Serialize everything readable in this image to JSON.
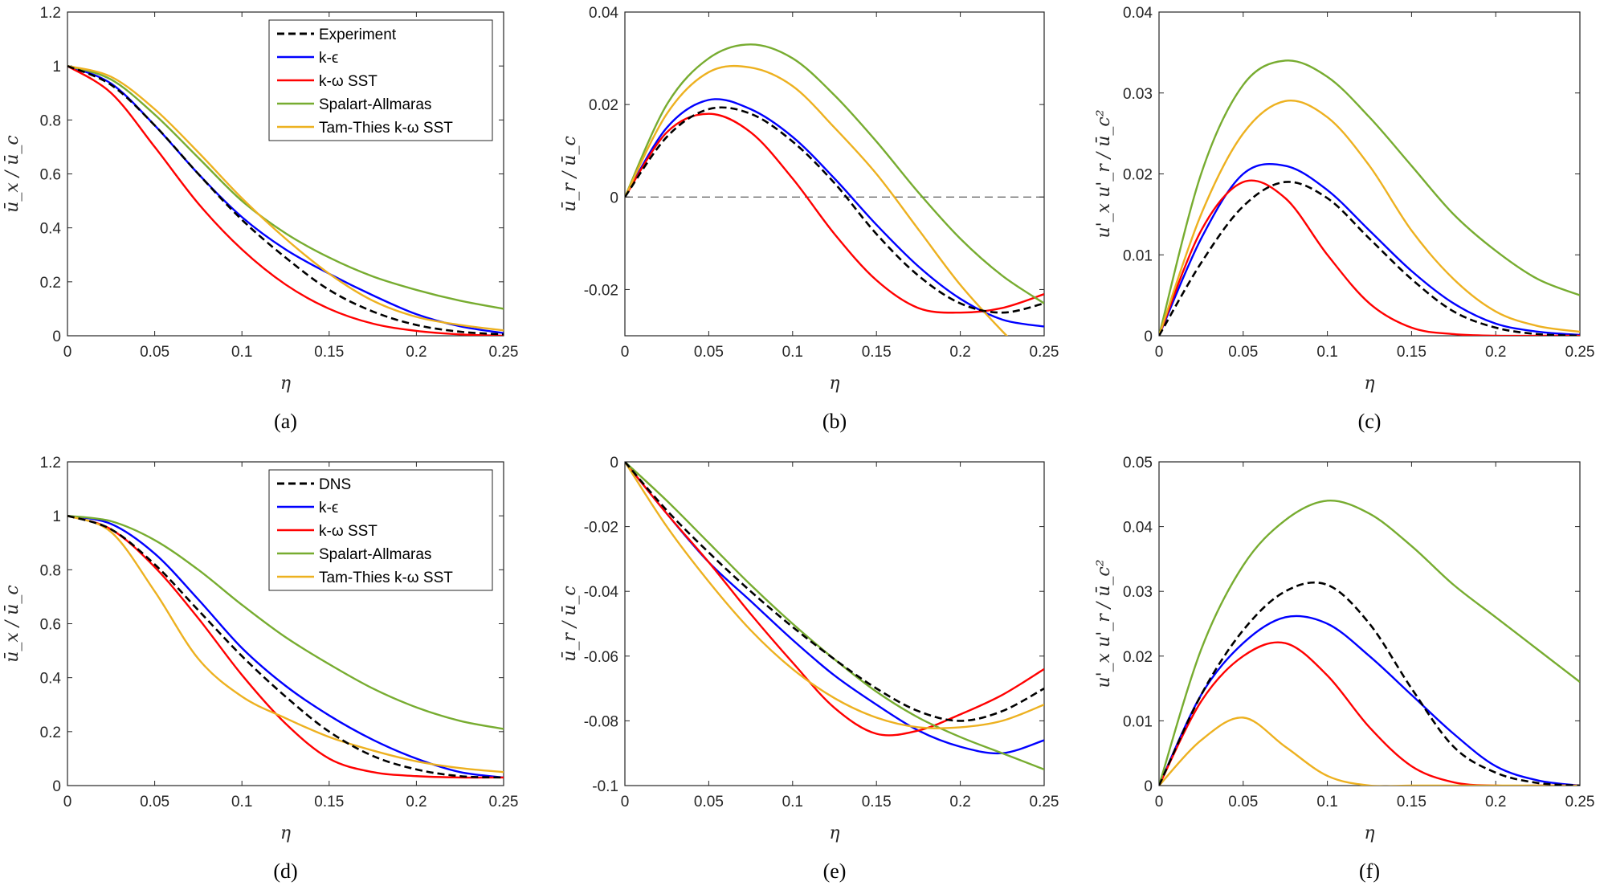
{
  "colors": {
    "reference": "#000000",
    "k-epsilon": "#0000FF",
    "k-omega-sst": "#FF0000",
    "spalart-allmaras": "#77AC30",
    "tam-thies": "#EDB120"
  },
  "chart_data": [
    {
      "type": "line",
      "caption": "(a)",
      "xlabel": "η",
      "ylabel": "ū_x / ū_c",
      "xlim": [
        0,
        0.25
      ],
      "ylim": [
        0,
        1.2
      ],
      "xticks": [
        "0",
        "0.05",
        "0.1",
        "0.15",
        "0.2",
        "0.25"
      ],
      "yticks": [
        "0",
        "0.2",
        "0.4",
        "0.6",
        "0.8",
        "1",
        "1.2"
      ],
      "legend": "top-right",
      "x": [
        0,
        0.025,
        0.05,
        0.075,
        0.1,
        0.125,
        0.15,
        0.175,
        0.2,
        0.225,
        0.25
      ],
      "series": [
        {
          "name": "Experiment",
          "color": "reference",
          "dashed": true,
          "values": [
            1.0,
            0.93,
            0.78,
            0.6,
            0.43,
            0.29,
            0.17,
            0.09,
            0.04,
            0.015,
            0.005
          ]
        },
        {
          "name": "k-ϵ",
          "color": "k-epsilon",
          "dashed": false,
          "values": [
            1.0,
            0.935,
            0.78,
            0.6,
            0.44,
            0.32,
            0.23,
            0.15,
            0.08,
            0.035,
            0.01
          ]
        },
        {
          "name": "k-ω SST",
          "color": "k-omega-sst",
          "dashed": false,
          "values": [
            1.0,
            0.9,
            0.7,
            0.49,
            0.32,
            0.19,
            0.1,
            0.045,
            0.018,
            0.005,
            0.0
          ]
        },
        {
          "name": "Spalart-Allmaras",
          "color": "spalart-allmaras",
          "dashed": false,
          "values": [
            1.0,
            0.95,
            0.82,
            0.66,
            0.5,
            0.38,
            0.29,
            0.22,
            0.17,
            0.13,
            0.1
          ]
        },
        {
          "name": "Tam-Thies k-ω SST",
          "color": "tam-thies",
          "dashed": false,
          "values": [
            1.0,
            0.96,
            0.84,
            0.68,
            0.51,
            0.36,
            0.23,
            0.13,
            0.07,
            0.04,
            0.02
          ]
        }
      ]
    },
    {
      "type": "line",
      "caption": "(b)",
      "xlabel": "η",
      "ylabel": "ū_r / ū_c",
      "xlim": [
        0,
        0.25
      ],
      "ylim": [
        -0.03,
        0.04
      ],
      "xticks": [
        "0",
        "0.05",
        "0.1",
        "0.15",
        "0.2",
        "0.25"
      ],
      "yticks": [
        "-0.02",
        "0",
        "0.02",
        "0.04"
      ],
      "ytick_values": [
        -0.02,
        0,
        0.02,
        0.04
      ],
      "zero_line": true,
      "x": [
        0,
        0.025,
        0.05,
        0.075,
        0.1,
        0.125,
        0.15,
        0.175,
        0.2,
        0.225,
        0.25
      ],
      "series": [
        {
          "name": "Experiment",
          "color": "reference",
          "dashed": true,
          "values": [
            0.0,
            0.013,
            0.019,
            0.018,
            0.012,
            0.003,
            -0.008,
            -0.017,
            -0.023,
            -0.025,
            -0.023
          ]
        },
        {
          "name": "k-ϵ",
          "color": "k-epsilon",
          "dashed": false,
          "values": [
            0.0,
            0.015,
            0.021,
            0.019,
            0.013,
            0.004,
            -0.006,
            -0.015,
            -0.022,
            -0.0265,
            -0.028
          ]
        },
        {
          "name": "k-ω SST",
          "color": "k-omega-sst",
          "dashed": false,
          "values": [
            0.0,
            0.014,
            0.018,
            0.014,
            0.004,
            -0.008,
            -0.018,
            -0.024,
            -0.025,
            -0.024,
            -0.021
          ]
        },
        {
          "name": "Spalart-Allmaras",
          "color": "spalart-allmaras",
          "dashed": false,
          "values": [
            0.0,
            0.02,
            0.03,
            0.033,
            0.03,
            0.022,
            0.012,
            0.001,
            -0.009,
            -0.017,
            -0.023
          ]
        },
        {
          "name": "Tam-Thies k-ω SST",
          "color": "tam-thies",
          "dashed": false,
          "values": [
            0.0,
            0.018,
            0.027,
            0.028,
            0.024,
            0.015,
            0.005,
            -0.007,
            -0.019,
            -0.029,
            -0.038
          ]
        }
      ]
    },
    {
      "type": "line",
      "caption": "(c)",
      "xlabel": "η",
      "ylabel": "u'_x u'_r / ū_c²",
      "xlim": [
        0,
        0.25
      ],
      "ylim": [
        0,
        0.04
      ],
      "xticks": [
        "0",
        "0.05",
        "0.1",
        "0.15",
        "0.2",
        "0.25"
      ],
      "yticks": [
        "0",
        "0.01",
        "0.02",
        "0.03",
        "0.04"
      ],
      "x": [
        0,
        0.025,
        0.05,
        0.075,
        0.1,
        0.125,
        0.15,
        0.175,
        0.2,
        0.225,
        0.25
      ],
      "series": [
        {
          "name": "Experiment",
          "color": "reference",
          "dashed": true,
          "values": [
            0.0,
            0.009,
            0.016,
            0.019,
            0.017,
            0.012,
            0.007,
            0.003,
            0.001,
            0.0002,
            0.0
          ]
        },
        {
          "name": "k-ϵ",
          "color": "k-epsilon",
          "dashed": false,
          "values": [
            0.0,
            0.012,
            0.02,
            0.021,
            0.018,
            0.013,
            0.008,
            0.004,
            0.0015,
            0.0005,
            0.0001
          ]
        },
        {
          "name": "k-ω SST",
          "color": "k-omega-sst",
          "dashed": false,
          "values": [
            0.0,
            0.013,
            0.019,
            0.017,
            0.01,
            0.004,
            0.001,
            0.0002,
            0.0,
            0.0,
            0.0
          ]
        },
        {
          "name": "Spalart-Allmaras",
          "color": "spalart-allmaras",
          "dashed": false,
          "values": [
            0.0,
            0.02,
            0.031,
            0.034,
            0.032,
            0.027,
            0.021,
            0.015,
            0.0105,
            0.007,
            0.005
          ]
        },
        {
          "name": "Tam-Thies k-ω SST",
          "color": "tam-thies",
          "dashed": false,
          "values": [
            0.0,
            0.015,
            0.025,
            0.029,
            0.027,
            0.021,
            0.013,
            0.007,
            0.003,
            0.0012,
            0.0005
          ]
        }
      ]
    },
    {
      "type": "line",
      "caption": "(d)",
      "xlabel": "η",
      "ylabel": "ū_x / ū_c",
      "xlim": [
        0,
        0.25
      ],
      "ylim": [
        0,
        1.2
      ],
      "xticks": [
        "0",
        "0.05",
        "0.1",
        "0.15",
        "0.2",
        "0.25"
      ],
      "yticks": [
        "0",
        "0.2",
        "0.4",
        "0.6",
        "0.8",
        "1",
        "1.2"
      ],
      "legend": "top-right",
      "x": [
        0,
        0.025,
        0.05,
        0.075,
        0.1,
        0.125,
        0.15,
        0.175,
        0.2,
        0.225,
        0.25
      ],
      "series": [
        {
          "name": "DNS",
          "color": "reference",
          "dashed": true,
          "values": [
            1.0,
            0.95,
            0.82,
            0.65,
            0.48,
            0.33,
            0.2,
            0.11,
            0.06,
            0.035,
            0.03
          ]
        },
        {
          "name": "k-ϵ",
          "color": "k-epsilon",
          "dashed": false,
          "values": [
            1.0,
            0.97,
            0.86,
            0.69,
            0.51,
            0.37,
            0.26,
            0.17,
            0.1,
            0.05,
            0.03
          ]
        },
        {
          "name": "k-ω SST",
          "color": "k-omega-sst",
          "dashed": false,
          "values": [
            1.0,
            0.95,
            0.81,
            0.62,
            0.41,
            0.23,
            0.1,
            0.05,
            0.035,
            0.03,
            0.03
          ]
        },
        {
          "name": "Spalart-Allmaras",
          "color": "spalart-allmaras",
          "dashed": false,
          "values": [
            1.0,
            0.98,
            0.91,
            0.8,
            0.67,
            0.55,
            0.45,
            0.36,
            0.29,
            0.24,
            0.21
          ]
        },
        {
          "name": "Tam-Thies k-ω SST",
          "color": "tam-thies",
          "dashed": false,
          "values": [
            1.0,
            0.94,
            0.72,
            0.47,
            0.33,
            0.25,
            0.18,
            0.13,
            0.09,
            0.065,
            0.05
          ]
        }
      ]
    },
    {
      "type": "line",
      "caption": "(e)",
      "xlabel": "η",
      "ylabel": "ū_r / ū_c",
      "xlim": [
        0,
        0.25
      ],
      "ylim": [
        -0.1,
        0
      ],
      "xticks": [
        "0",
        "0.05",
        "0.1",
        "0.15",
        "0.2",
        "0.25"
      ],
      "yticks": [
        "-0.1",
        "-0.08",
        "-0.06",
        "-0.04",
        "-0.02",
        "0"
      ],
      "x": [
        0,
        0.025,
        0.05,
        0.075,
        0.1,
        0.125,
        0.15,
        0.175,
        0.2,
        0.225,
        0.25
      ],
      "series": [
        {
          "name": "DNS",
          "color": "reference",
          "dashed": true,
          "values": [
            0.0,
            -0.015,
            -0.028,
            -0.04,
            -0.051,
            -0.061,
            -0.07,
            -0.077,
            -0.08,
            -0.077,
            -0.07
          ]
        },
        {
          "name": "k-ϵ",
          "color": "k-epsilon",
          "dashed": false,
          "values": [
            0.0,
            -0.016,
            -0.031,
            -0.043,
            -0.055,
            -0.066,
            -0.075,
            -0.083,
            -0.088,
            -0.09,
            -0.086
          ]
        },
        {
          "name": "k-ω SST",
          "color": "k-omega-sst",
          "dashed": false,
          "values": [
            0.0,
            -0.016,
            -0.031,
            -0.047,
            -0.062,
            -0.076,
            -0.084,
            -0.083,
            -0.078,
            -0.072,
            -0.064
          ]
        },
        {
          "name": "Spalart-Allmaras",
          "color": "spalart-allmaras",
          "dashed": false,
          "values": [
            0.0,
            -0.012,
            -0.025,
            -0.038,
            -0.05,
            -0.061,
            -0.071,
            -0.079,
            -0.085,
            -0.09,
            -0.095
          ]
        },
        {
          "name": "Tam-Thies k-ω SST",
          "color": "tam-thies",
          "dashed": false,
          "values": [
            0.0,
            -0.02,
            -0.037,
            -0.052,
            -0.064,
            -0.073,
            -0.079,
            -0.082,
            -0.082,
            -0.08,
            -0.075
          ]
        }
      ]
    },
    {
      "type": "line",
      "caption": "(f)",
      "xlabel": "η",
      "ylabel": "u'_x u'_r / ū_c²",
      "xlim": [
        0,
        0.25
      ],
      "ylim": [
        0,
        0.05
      ],
      "xticks": [
        "0",
        "0.05",
        "0.1",
        "0.15",
        "0.2",
        "0.25"
      ],
      "yticks": [
        "0",
        "0.01",
        "0.02",
        "0.03",
        "0.04",
        "0.05"
      ],
      "x": [
        0,
        0.025,
        0.05,
        0.075,
        0.1,
        0.125,
        0.15,
        0.175,
        0.2,
        0.225,
        0.25
      ],
      "series": [
        {
          "name": "DNS",
          "color": "reference",
          "dashed": true,
          "values": [
            0.0,
            0.014,
            0.024,
            0.03,
            0.031,
            0.025,
            0.015,
            0.006,
            0.002,
            0.0004,
            0.0
          ]
        },
        {
          "name": "k-ϵ",
          "color": "k-epsilon",
          "dashed": false,
          "values": [
            0.0,
            0.014,
            0.022,
            0.026,
            0.025,
            0.02,
            0.014,
            0.008,
            0.003,
            0.0008,
            0.0
          ]
        },
        {
          "name": "k-ω SST",
          "color": "k-omega-sst",
          "dashed": false,
          "values": [
            0.0,
            0.013,
            0.02,
            0.022,
            0.017,
            0.009,
            0.003,
            0.0005,
            0.0,
            0.0,
            0.0
          ]
        },
        {
          "name": "Spalart-Allmaras",
          "color": "spalart-allmaras",
          "dashed": false,
          "values": [
            0.0,
            0.021,
            0.034,
            0.041,
            0.044,
            0.042,
            0.037,
            0.031,
            0.026,
            0.021,
            0.016
          ]
        },
        {
          "name": "Tam-Thies k-ω SST",
          "color": "tam-thies",
          "dashed": false,
          "values": [
            0.0,
            0.007,
            0.0105,
            0.006,
            0.0015,
            0.0,
            0.0,
            0.0,
            0.0,
            0.0,
            0.0
          ]
        }
      ]
    }
  ]
}
